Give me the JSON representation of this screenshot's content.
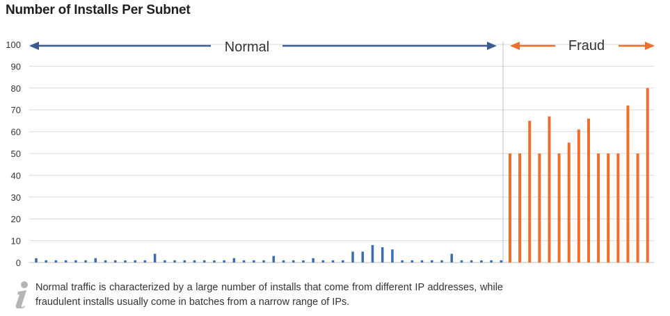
{
  "title": "Number of Installs Per Subnet",
  "note": "Normal traffic is characterized by a large number of installs that come from different IP addresses, while fraudulent installs usually come in batches from a narrow range of IPs.",
  "note_icon": "info-icon",
  "colors": {
    "normal": "#3d6bb3",
    "fraud": "#ec6f2d",
    "normal_arrow": "#3b5a8f",
    "grid": "#d9d9d9",
    "divider": "#bfbfbf",
    "tick": "#333333"
  },
  "chart_data": {
    "type": "bar",
    "title": "Number of Installs Per Subnet",
    "xlabel": "",
    "ylabel": "",
    "ylim": [
      0,
      100
    ],
    "yticks": [
      0,
      10,
      20,
      30,
      40,
      50,
      60,
      70,
      80,
      90,
      100
    ],
    "grid": true,
    "x_tick_labels": false,
    "series": [
      {
        "name": "Normal",
        "color": "#3d6bb3",
        "values": [
          2,
          1,
          1,
          1,
          1,
          1,
          2,
          1,
          1,
          1,
          1,
          1,
          4,
          1,
          1,
          1,
          1,
          1,
          1,
          1,
          2,
          1,
          1,
          1,
          3,
          1,
          1,
          1,
          2,
          1,
          1,
          1,
          5,
          5,
          8,
          7,
          6,
          1,
          1,
          1,
          1,
          1,
          4,
          1,
          1,
          1,
          1,
          1
        ]
      },
      {
        "name": "Fraud",
        "color": "#ec6f2d",
        "values": [
          50,
          50,
          65,
          50,
          67,
          50,
          55,
          61,
          66,
          50,
          50,
          50,
          72,
          50,
          80
        ]
      }
    ],
    "annotations": [
      {
        "label": "Normal",
        "type": "double-arrow",
        "span": "normal"
      },
      {
        "label": "Fraud",
        "type": "double-arrow",
        "span": "fraud"
      }
    ]
  }
}
